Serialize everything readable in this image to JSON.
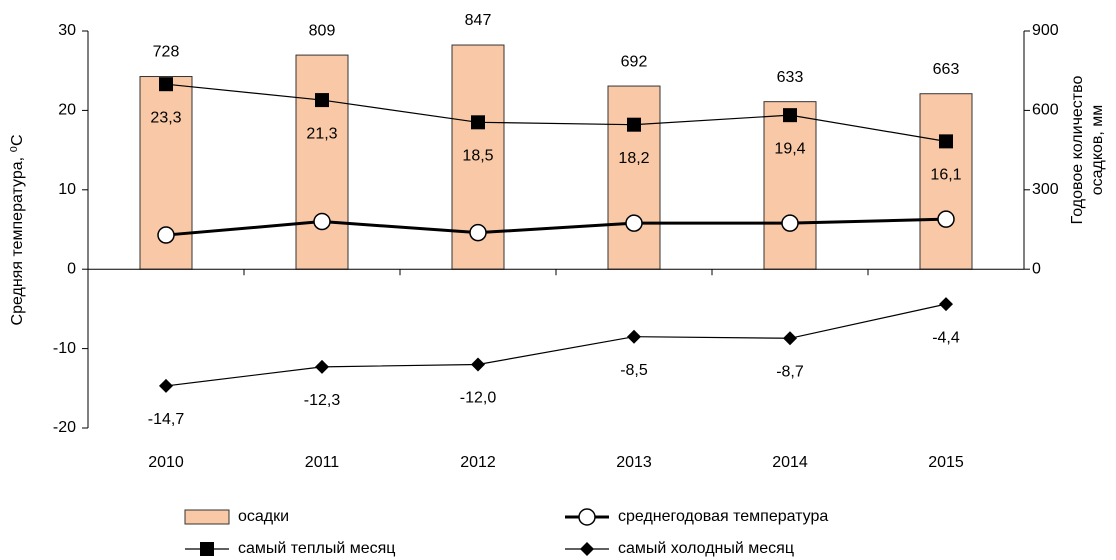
{
  "chart_data": {
    "type": "combo",
    "categories": [
      "2010",
      "2011",
      "2012",
      "2013",
      "2014",
      "2015"
    ],
    "ylabel": "Средняя температура, ⁰С",
    "y2label": [
      "Годовое количество",
      "осадков, мм"
    ],
    "ylim": [
      -20,
      30
    ],
    "yticks": [
      -20,
      -10,
      0,
      10,
      20,
      30
    ],
    "y2lim": [
      -600,
      900
    ],
    "y2ticks": [
      0,
      300,
      600,
      900
    ],
    "grid": false,
    "legend": "bottom",
    "series": [
      {
        "name": "осадки",
        "type": "bar",
        "axis": "y2",
        "color": "#f9c9a7",
        "values": [
          728,
          809,
          847,
          692,
          633,
          663
        ]
      },
      {
        "name": "среднегодовая температура",
        "type": "line",
        "marker": "circle",
        "color": "#000000",
        "values": [
          4.3,
          6.0,
          4.6,
          5.8,
          5.8,
          6.3
        ]
      },
      {
        "name": "самый теплый месяц",
        "type": "line",
        "marker": "square",
        "color": "#000000",
        "values": [
          23.3,
          21.3,
          18.5,
          18.2,
          19.4,
          16.1
        ],
        "value_labels": [
          "23,3",
          "21,3",
          "18,5",
          "18,2",
          "19,4",
          "16,1"
        ]
      },
      {
        "name": "самый холодный месяц",
        "type": "line",
        "marker": "diamond",
        "color": "#000000",
        "values": [
          -14.7,
          -12.3,
          -12.0,
          -8.5,
          -8.7,
          -4.4
        ],
        "value_labels": [
          "-14,7",
          "-12,3",
          "-12,0",
          "-8,5",
          "-8,7",
          "-4,4"
        ]
      }
    ]
  }
}
